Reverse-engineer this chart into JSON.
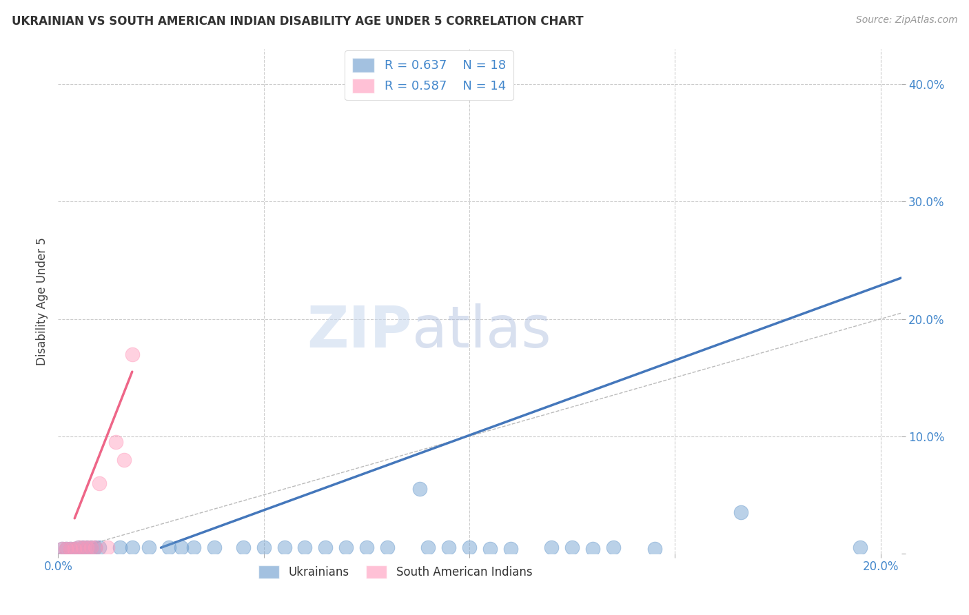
{
  "title": "UKRAINIAN VS SOUTH AMERICAN INDIAN DISABILITY AGE UNDER 5 CORRELATION CHART",
  "source": "Source: ZipAtlas.com",
  "ylabel": "Disability Age Under 5",
  "watermark_zip": "ZIP",
  "watermark_atlas": "atlas",
  "xlim": [
    0.0,
    0.205
  ],
  "ylim": [
    0.0,
    0.43
  ],
  "xticks": [
    0.0,
    0.05,
    0.1,
    0.15,
    0.2
  ],
  "yticks": [
    0.1,
    0.2,
    0.3,
    0.4
  ],
  "blue_color": "#6699CC",
  "blue_line_color": "#4477BB",
  "pink_color": "#FF99BB",
  "pink_line_color": "#EE6688",
  "grid_color": "#CCCCCC",
  "bg_color": "#FFFFFF",
  "blue_scatter": [
    [
      0.001,
      0.004
    ],
    [
      0.002,
      0.004
    ],
    [
      0.003,
      0.004
    ],
    [
      0.004,
      0.004
    ],
    [
      0.005,
      0.005
    ],
    [
      0.006,
      0.005
    ],
    [
      0.007,
      0.005
    ],
    [
      0.008,
      0.005
    ],
    [
      0.009,
      0.005
    ],
    [
      0.01,
      0.005
    ],
    [
      0.015,
      0.005
    ],
    [
      0.018,
      0.005
    ],
    [
      0.022,
      0.005
    ],
    [
      0.027,
      0.005
    ],
    [
      0.03,
      0.005
    ],
    [
      0.033,
      0.005
    ],
    [
      0.038,
      0.005
    ],
    [
      0.045,
      0.005
    ],
    [
      0.05,
      0.005
    ],
    [
      0.055,
      0.005
    ],
    [
      0.06,
      0.005
    ],
    [
      0.065,
      0.005
    ],
    [
      0.07,
      0.005
    ],
    [
      0.075,
      0.005
    ],
    [
      0.08,
      0.005
    ],
    [
      0.09,
      0.005
    ],
    [
      0.095,
      0.005
    ],
    [
      0.1,
      0.005
    ],
    [
      0.105,
      0.004
    ],
    [
      0.11,
      0.004
    ],
    [
      0.12,
      0.005
    ],
    [
      0.125,
      0.005
    ],
    [
      0.13,
      0.004
    ],
    [
      0.135,
      0.005
    ],
    [
      0.088,
      0.055
    ],
    [
      0.145,
      0.004
    ],
    [
      0.166,
      0.035
    ],
    [
      0.195,
      0.005
    ]
  ],
  "pink_scatter": [
    [
      0.001,
      0.004
    ],
    [
      0.002,
      0.004
    ],
    [
      0.003,
      0.004
    ],
    [
      0.004,
      0.004
    ],
    [
      0.005,
      0.005
    ],
    [
      0.006,
      0.005
    ],
    [
      0.007,
      0.005
    ],
    [
      0.008,
      0.005
    ],
    [
      0.009,
      0.005
    ],
    [
      0.01,
      0.06
    ],
    [
      0.012,
      0.005
    ],
    [
      0.014,
      0.095
    ],
    [
      0.016,
      0.08
    ],
    [
      0.018,
      0.17
    ]
  ],
  "blue_line_x": [
    0.025,
    0.205
  ],
  "blue_line_y": [
    0.005,
    0.235
  ],
  "pink_line_x": [
    0.004,
    0.018
  ],
  "pink_line_y": [
    0.03,
    0.155
  ],
  "diag_line_x": [
    0.0,
    0.205
  ],
  "diag_line_y": [
    0.0,
    0.205
  ]
}
